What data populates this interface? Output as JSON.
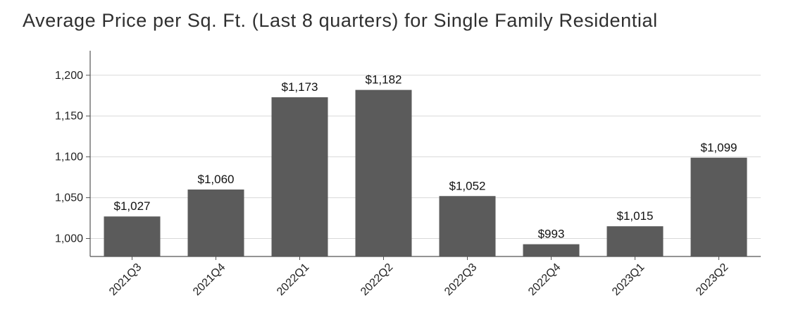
{
  "chart_data": {
    "type": "bar",
    "title": "Average Price per Sq. Ft. (Last 8 quarters) for Single Family Residential",
    "categories": [
      "2021Q3",
      "2021Q4",
      "2022Q1",
      "2022Q2",
      "2022Q3",
      "2022Q4",
      "2023Q1",
      "2023Q2"
    ],
    "values": [
      1027,
      1060,
      1173,
      1182,
      1052,
      993,
      1015,
      1099
    ],
    "data_labels": [
      "$1,027",
      "$1,060",
      "$1,173",
      "$1,182",
      "$1,052",
      "$993",
      "$1,015",
      "$1,099"
    ],
    "yticks": [
      1000,
      1050,
      1100,
      1150,
      1200
    ],
    "ytick_labels": [
      "1,000",
      "1,050",
      "1,100",
      "1,150",
      "1,200"
    ],
    "ylim": [
      978,
      1230
    ],
    "bar_color": "#5b5b5b",
    "grid_color": "#d9d9d9",
    "grid": true,
    "legend": false
  }
}
